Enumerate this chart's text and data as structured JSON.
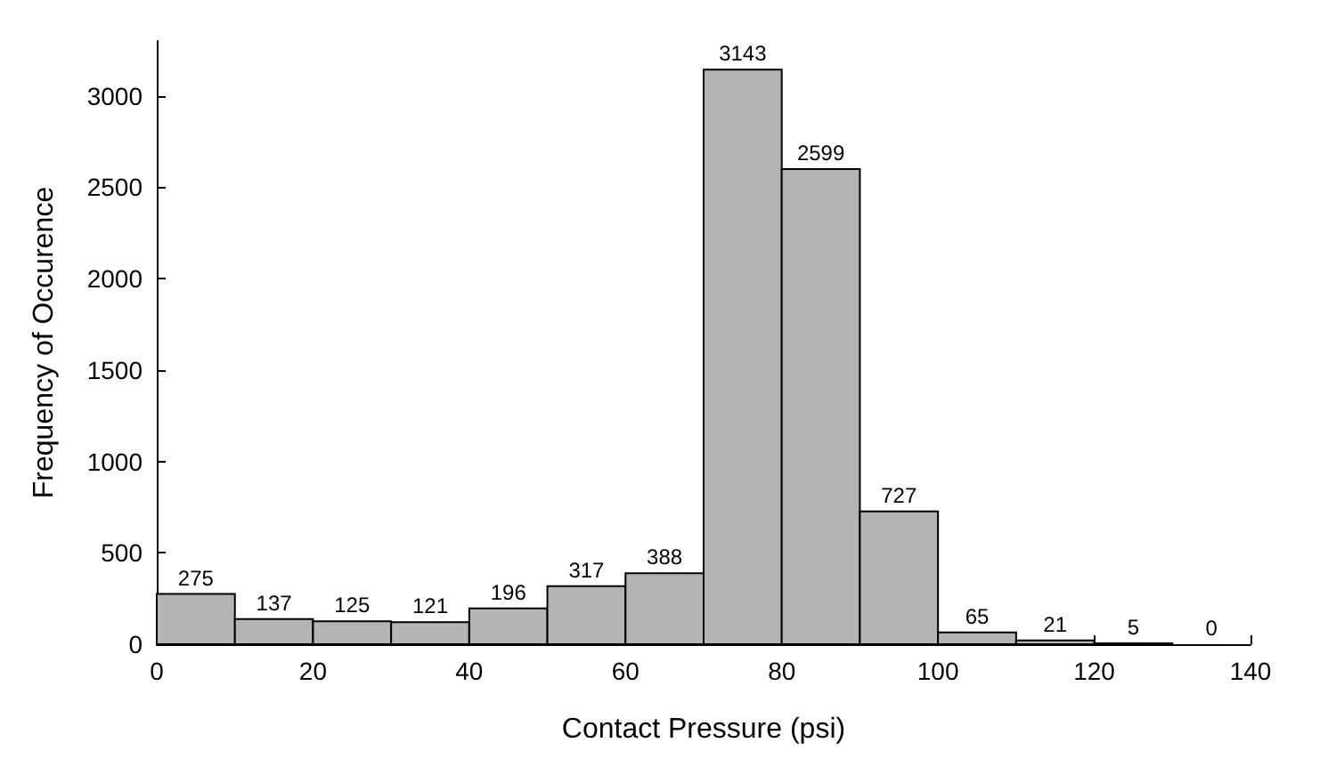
{
  "chart_data": {
    "type": "histogram",
    "xlabel": "Contact Pressure (psi)",
    "ylabel": "Frequency of Occurence",
    "bins": [
      0,
      10,
      20,
      30,
      40,
      50,
      60,
      70,
      80,
      90,
      100,
      110,
      120,
      130,
      140
    ],
    "values": [
      275,
      137,
      125,
      121,
      196,
      317,
      388,
      3143,
      2599,
      727,
      65,
      21,
      5,
      0
    ],
    "color": "#b4b4b4",
    "data_labels": true,
    "xlim": [
      0,
      140
    ],
    "xticks": [
      0,
      20,
      40,
      60,
      80,
      100,
      120,
      140
    ],
    "ylim": [
      0,
      3300
    ],
    "yticks": [
      0,
      500,
      1000,
      1500,
      2000,
      2500,
      3000
    ],
    "grid": false
  }
}
